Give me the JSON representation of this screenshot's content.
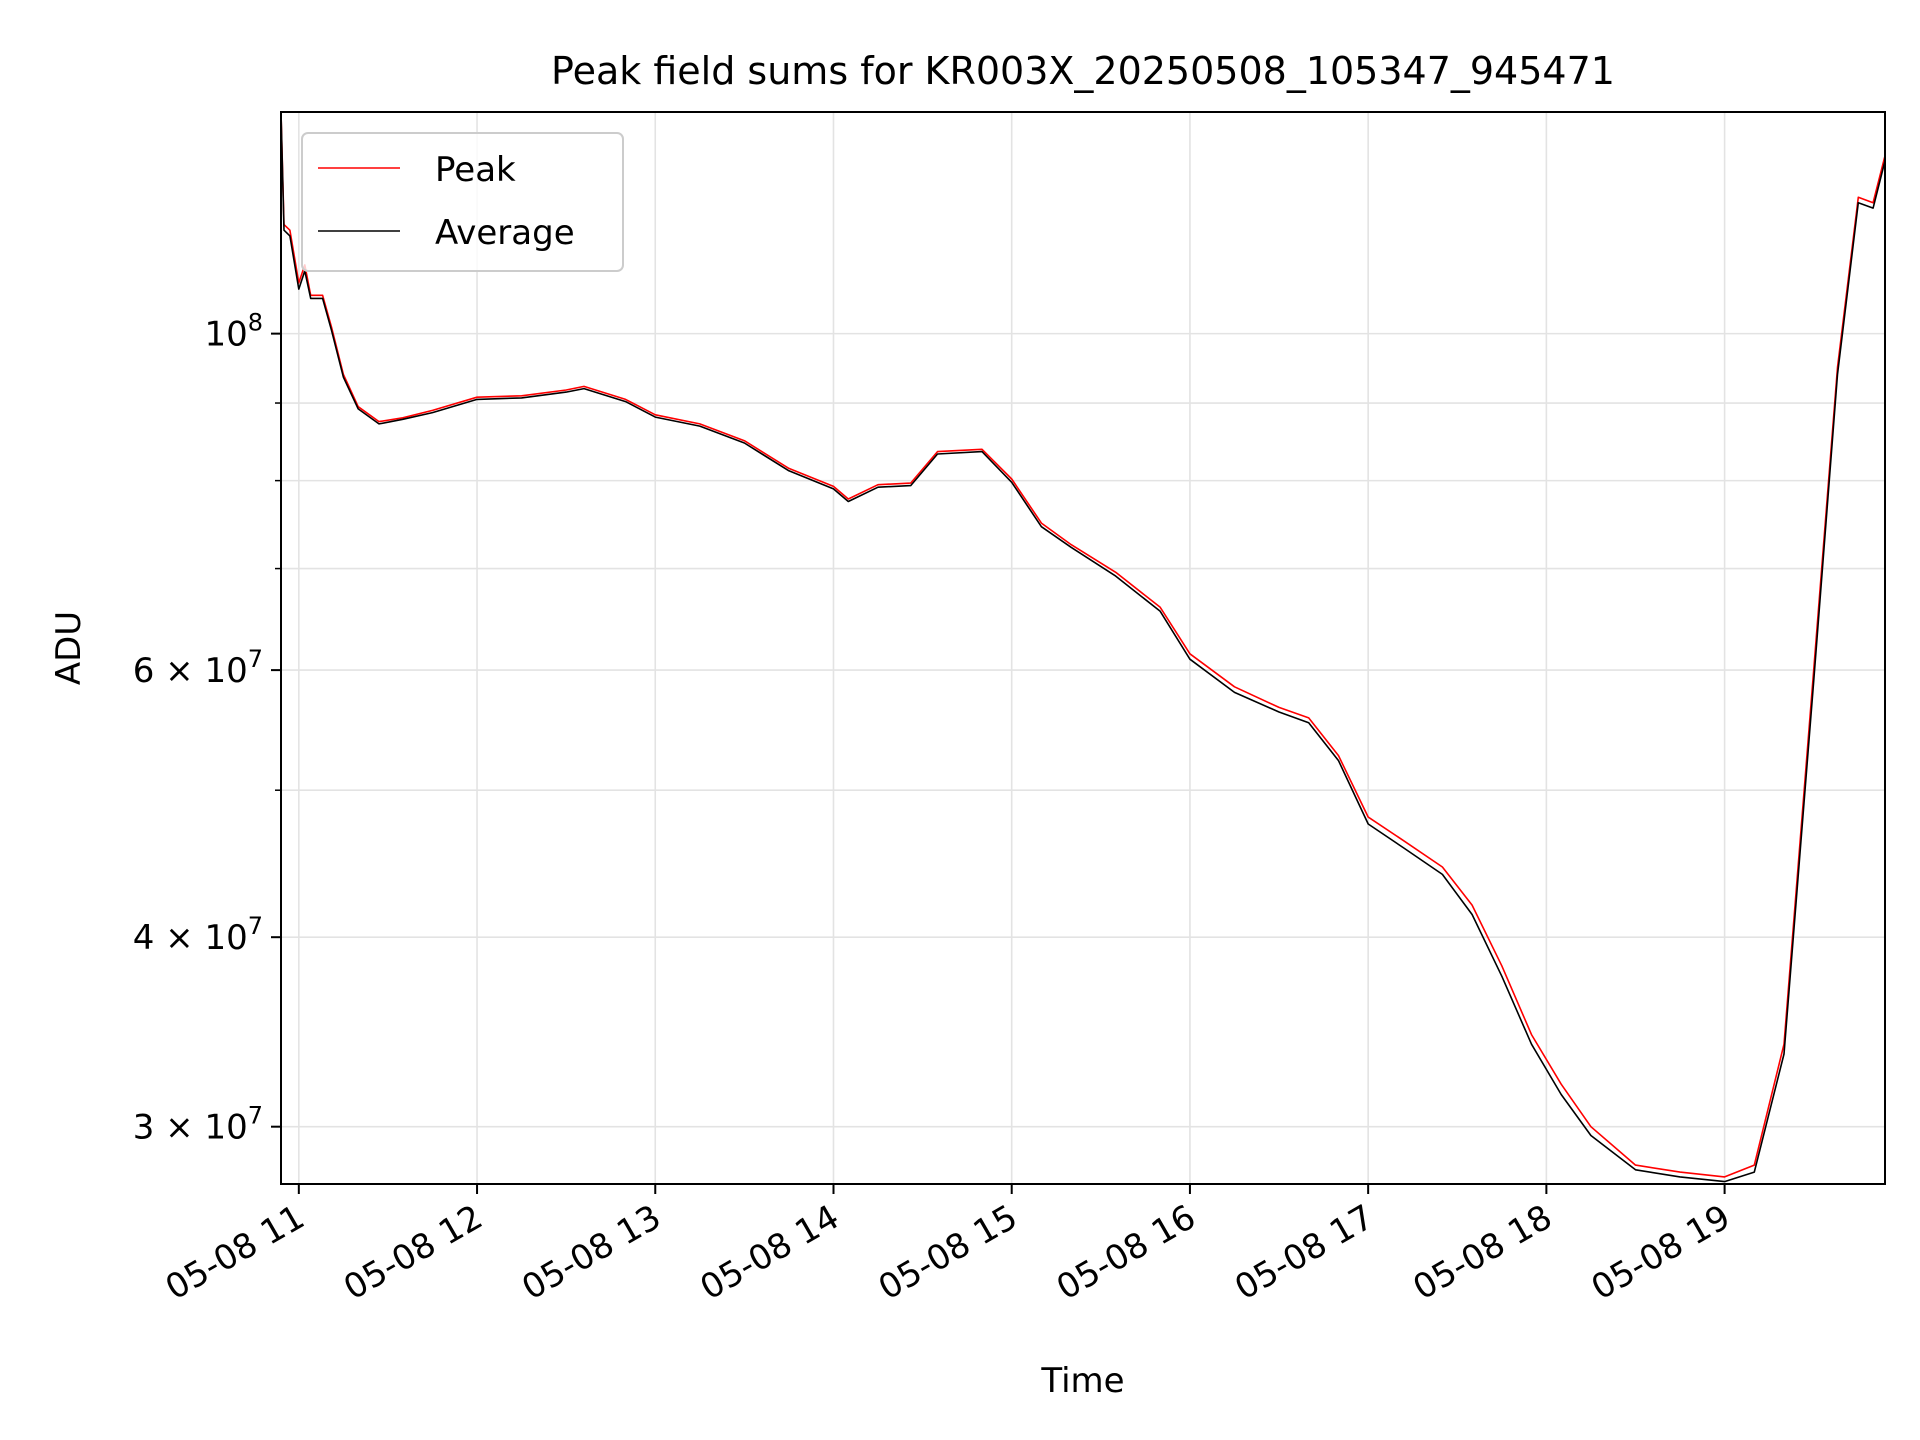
{
  "chart_data": {
    "type": "line",
    "title": "Peak field sums for KR003X_20250508_105347_945471",
    "xlabel": "Time",
    "ylabel": "ADU",
    "yscale": "log",
    "xlim": [
      "2025-05-08 10:54",
      "2025-05-08 19:54"
    ],
    "ylim": [
      27500000,
      140000000
    ],
    "grid": true,
    "legend_position": "upper-left",
    "x_ticks": [
      {
        "x": "2025-05-08 11:00",
        "label": "05-08 11"
      },
      {
        "x": "2025-05-08 12:00",
        "label": "05-08 12"
      },
      {
        "x": "2025-05-08 13:00",
        "label": "05-08 13"
      },
      {
        "x": "2025-05-08 14:00",
        "label": "05-08 14"
      },
      {
        "x": "2025-05-08 15:00",
        "label": "05-08 15"
      },
      {
        "x": "2025-05-08 16:00",
        "label": "05-08 16"
      },
      {
        "x": "2025-05-08 17:00",
        "label": "05-08 17"
      },
      {
        "x": "2025-05-08 18:00",
        "label": "05-08 18"
      },
      {
        "x": "2025-05-08 19:00",
        "label": "05-08 19"
      }
    ],
    "y_ticks": [
      {
        "value": 100000000,
        "mantissa": "10",
        "exp": "8"
      },
      {
        "value": 60000000,
        "mantissa": "6 × 10",
        "exp": "7"
      },
      {
        "value": 40000000,
        "mantissa": "4 × 10",
        "exp": "7"
      },
      {
        "value": 30000000,
        "mantissa": "3 × 10",
        "exp": "7"
      }
    ],
    "y_minor_ticks": [
      50000000,
      70000000,
      80000000,
      90000000
    ],
    "series": [
      {
        "name": "Peak",
        "color": "#ff0000",
        "points": [
          [
            "2025-05-08 10:54",
            140000000
          ],
          [
            "2025-05-08 10:55",
            118000000
          ],
          [
            "2025-05-08 10:57",
            117000000
          ],
          [
            "2025-05-08 11:00",
            108000000
          ],
          [
            "2025-05-08 11:02",
            111000000
          ],
          [
            "2025-05-08 11:04",
            106000000
          ],
          [
            "2025-05-08 11:08",
            106000000
          ],
          [
            "2025-05-08 11:11",
            101000000
          ],
          [
            "2025-05-08 11:15",
            94000000
          ],
          [
            "2025-05-08 11:20",
            89500000
          ],
          [
            "2025-05-08 11:27",
            87500000
          ],
          [
            "2025-05-08 11:35",
            88000000
          ],
          [
            "2025-05-08 11:45",
            89000000
          ],
          [
            "2025-05-08 12:00",
            90800000
          ],
          [
            "2025-05-08 12:15",
            91000000
          ],
          [
            "2025-05-08 12:30",
            91800000
          ],
          [
            "2025-05-08 12:36",
            92300000
          ],
          [
            "2025-05-08 12:50",
            90500000
          ],
          [
            "2025-05-08 13:00",
            88400000
          ],
          [
            "2025-05-08 13:15",
            87200000
          ],
          [
            "2025-05-08 13:30",
            85000000
          ],
          [
            "2025-05-08 13:45",
            81500000
          ],
          [
            "2025-05-08 14:00",
            79300000
          ],
          [
            "2025-05-08 14:05",
            77800000
          ],
          [
            "2025-05-08 14:15",
            79500000
          ],
          [
            "2025-05-08 14:26",
            79700000
          ],
          [
            "2025-05-08 14:35",
            83600000
          ],
          [
            "2025-05-08 14:50",
            83900000
          ],
          [
            "2025-05-08 15:00",
            80200000
          ],
          [
            "2025-05-08 15:10",
            75000000
          ],
          [
            "2025-05-08 15:20",
            72600000
          ],
          [
            "2025-05-08 15:35",
            69600000
          ],
          [
            "2025-05-08 15:50",
            66000000
          ],
          [
            "2025-05-08 16:00",
            61500000
          ],
          [
            "2025-05-08 16:15",
            58500000
          ],
          [
            "2025-05-08 16:30",
            56700000
          ],
          [
            "2025-05-08 16:40",
            55800000
          ],
          [
            "2025-05-08 16:50",
            52700000
          ],
          [
            "2025-05-08 17:00",
            48000000
          ],
          [
            "2025-05-08 17:12",
            46300000
          ],
          [
            "2025-05-08 17:25",
            44500000
          ],
          [
            "2025-05-08 17:35",
            42000000
          ],
          [
            "2025-05-08 17:45",
            38300000
          ],
          [
            "2025-05-08 17:55",
            34500000
          ],
          [
            "2025-05-08 18:05",
            32000000
          ],
          [
            "2025-05-08 18:15",
            30000000
          ],
          [
            "2025-05-08 18:30",
            28300000
          ],
          [
            "2025-05-08 18:45",
            28000000
          ],
          [
            "2025-05-08 19:00",
            27800000
          ],
          [
            "2025-05-08 19:10",
            28300000
          ],
          [
            "2025-05-08 19:20",
            34000000
          ],
          [
            "2025-05-08 19:30",
            60000000
          ],
          [
            "2025-05-08 19:38",
            95000000
          ],
          [
            "2025-05-08 19:45",
            123000000
          ],
          [
            "2025-05-08 19:50",
            122000000
          ],
          [
            "2025-05-08 19:54",
            131000000
          ]
        ]
      },
      {
        "name": "Average",
        "color": "#000000",
        "points": [
          [
            "2025-05-08 10:54",
            140000000
          ],
          [
            "2025-05-08 10:55",
            117000000
          ],
          [
            "2025-05-08 10:57",
            116000000
          ],
          [
            "2025-05-08 11:00",
            107000000
          ],
          [
            "2025-05-08 11:02",
            110000000
          ],
          [
            "2025-05-08 11:04",
            105500000
          ],
          [
            "2025-05-08 11:08",
            105500000
          ],
          [
            "2025-05-08 11:11",
            100500000
          ],
          [
            "2025-05-08 11:15",
            93600000
          ],
          [
            "2025-05-08 11:20",
            89200000
          ],
          [
            "2025-05-08 11:27",
            87200000
          ],
          [
            "2025-05-08 11:35",
            87800000
          ],
          [
            "2025-05-08 11:45",
            88700000
          ],
          [
            "2025-05-08 12:00",
            90500000
          ],
          [
            "2025-05-08 12:15",
            90700000
          ],
          [
            "2025-05-08 12:30",
            91500000
          ],
          [
            "2025-05-08 12:36",
            92000000
          ],
          [
            "2025-05-08 12:50",
            90200000
          ],
          [
            "2025-05-08 13:00",
            88100000
          ],
          [
            "2025-05-08 13:15",
            86900000
          ],
          [
            "2025-05-08 13:30",
            84700000
          ],
          [
            "2025-05-08 13:45",
            81200000
          ],
          [
            "2025-05-08 14:00",
            79000000
          ],
          [
            "2025-05-08 14:05",
            77500000
          ],
          [
            "2025-05-08 14:15",
            79200000
          ],
          [
            "2025-05-08 14:26",
            79400000
          ],
          [
            "2025-05-08 14:35",
            83300000
          ],
          [
            "2025-05-08 14:50",
            83600000
          ],
          [
            "2025-05-08 15:00",
            79800000
          ],
          [
            "2025-05-08 15:10",
            74600000
          ],
          [
            "2025-05-08 15:20",
            72300000
          ],
          [
            "2025-05-08 15:35",
            69200000
          ],
          [
            "2025-05-08 15:50",
            65600000
          ],
          [
            "2025-05-08 16:00",
            61000000
          ],
          [
            "2025-05-08 16:15",
            58000000
          ],
          [
            "2025-05-08 16:30",
            56300000
          ],
          [
            "2025-05-08 16:40",
            55400000
          ],
          [
            "2025-05-08 16:50",
            52300000
          ],
          [
            "2025-05-08 17:00",
            47500000
          ],
          [
            "2025-05-08 17:12",
            45800000
          ],
          [
            "2025-05-08 17:25",
            44000000
          ],
          [
            "2025-05-08 17:35",
            41400000
          ],
          [
            "2025-05-08 17:45",
            37700000
          ],
          [
            "2025-05-08 17:55",
            34000000
          ],
          [
            "2025-05-08 18:05",
            31500000
          ],
          [
            "2025-05-08 18:15",
            29600000
          ],
          [
            "2025-05-08 18:30",
            28100000
          ],
          [
            "2025-05-08 18:45",
            27800000
          ],
          [
            "2025-05-08 19:00",
            27600000
          ],
          [
            "2025-05-08 19:10",
            28000000
          ],
          [
            "2025-05-08 19:20",
            33500000
          ],
          [
            "2025-05-08 19:30",
            59000000
          ],
          [
            "2025-05-08 19:38",
            94000000
          ],
          [
            "2025-05-08 19:45",
            122000000
          ],
          [
            "2025-05-08 19:50",
            121000000
          ],
          [
            "2025-05-08 19:54",
            130000000
          ]
        ]
      }
    ]
  }
}
